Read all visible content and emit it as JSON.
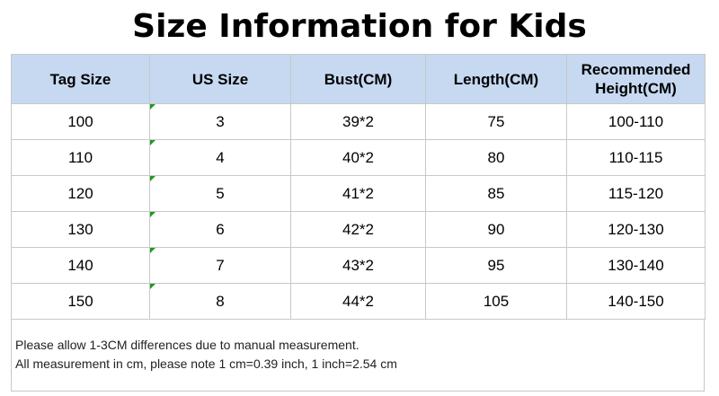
{
  "header": {
    "title": "Size Information for Kids"
  },
  "table": {
    "columns": [
      "Tag Size",
      "US Size",
      "Bust(CM)",
      "Length(CM)",
      "Recommended Height(CM)"
    ],
    "rows": [
      [
        "100",
        "3",
        "39*2",
        "75",
        "100-110"
      ],
      [
        "110",
        "4",
        "40*2",
        "80",
        "110-115"
      ],
      [
        "120",
        "5",
        "41*2",
        "85",
        "115-120"
      ],
      [
        "130",
        "6",
        "42*2",
        "90",
        "120-130"
      ],
      [
        "140",
        "7",
        "43*2",
        "95",
        "130-140"
      ],
      [
        "150",
        "8",
        "44*2",
        "105",
        "140-150"
      ]
    ]
  },
  "notes": [
    "Please allow 1-3CM differences due to manual measurement.",
    "All measurement in cm, please note 1 cm=0.39 inch, 1 inch=2.54 cm"
  ]
}
